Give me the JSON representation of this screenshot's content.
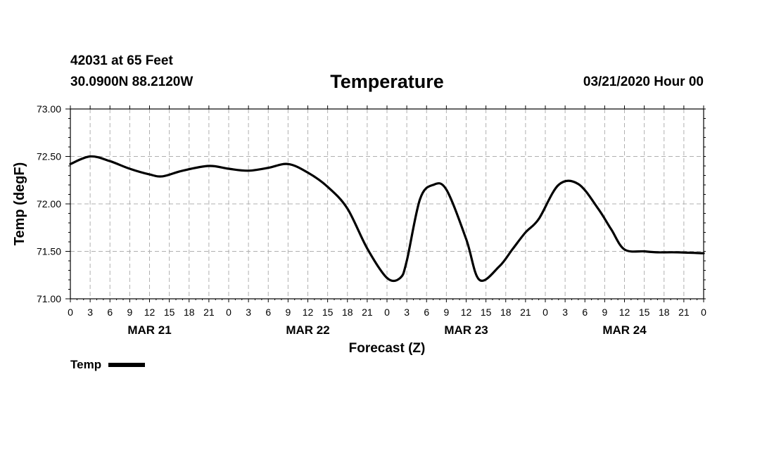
{
  "header": {
    "station": "42031 at 65 Feet",
    "coords": "30.0900N 88.2120W",
    "date": "03/21/2020 Hour 00"
  },
  "chart_data": {
    "type": "line",
    "title": "Temperature",
    "xlabel": "Forecast (Z)",
    "ylabel": "Temp (degF)",
    "ylim": [
      71.0,
      73.0
    ],
    "yticks": [
      "71.00",
      "71.50",
      "72.00",
      "72.50",
      "73.00"
    ],
    "xlim": [
      0,
      96
    ],
    "x_tick_step_hours": 3,
    "x_tick_labels": [
      "0",
      "3",
      "6",
      "9",
      "12",
      "15",
      "18",
      "21",
      "0",
      "3",
      "6",
      "9",
      "12",
      "15",
      "18",
      "21",
      "0",
      "3",
      "6",
      "9",
      "12",
      "15",
      "18",
      "21",
      "0",
      "3",
      "6",
      "9",
      "12",
      "15",
      "18",
      "21",
      "0"
    ],
    "day_labels": [
      {
        "label": "MAR 21",
        "hour": 12
      },
      {
        "label": "MAR 22",
        "hour": 36
      },
      {
        "label": "MAR 23",
        "hour": 60
      },
      {
        "label": "MAR 24",
        "hour": 84
      }
    ],
    "grid": true,
    "series": [
      {
        "name": "Temp",
        "color": "#000000",
        "x": [
          0,
          3,
          6,
          9,
          12,
          14,
          17,
          21,
          24,
          27,
          30,
          33,
          36,
          39,
          42,
          45,
          48,
          50,
          51,
          53,
          55,
          57,
          60,
          62,
          65,
          67,
          69,
          71,
          74,
          77,
          80,
          82,
          84,
          87,
          89,
          92,
          96
        ],
        "values": [
          72.42,
          72.5,
          72.45,
          72.37,
          72.31,
          72.29,
          72.35,
          72.4,
          72.37,
          72.35,
          72.38,
          72.42,
          72.33,
          72.18,
          71.95,
          71.53,
          71.22,
          71.22,
          71.4,
          72.05,
          72.2,
          72.15,
          71.63,
          71.2,
          71.34,
          71.52,
          71.7,
          71.84,
          72.2,
          72.21,
          71.95,
          71.73,
          71.52,
          71.5,
          71.49,
          71.49,
          71.48
        ]
      }
    ],
    "legend": "bottom-left"
  }
}
